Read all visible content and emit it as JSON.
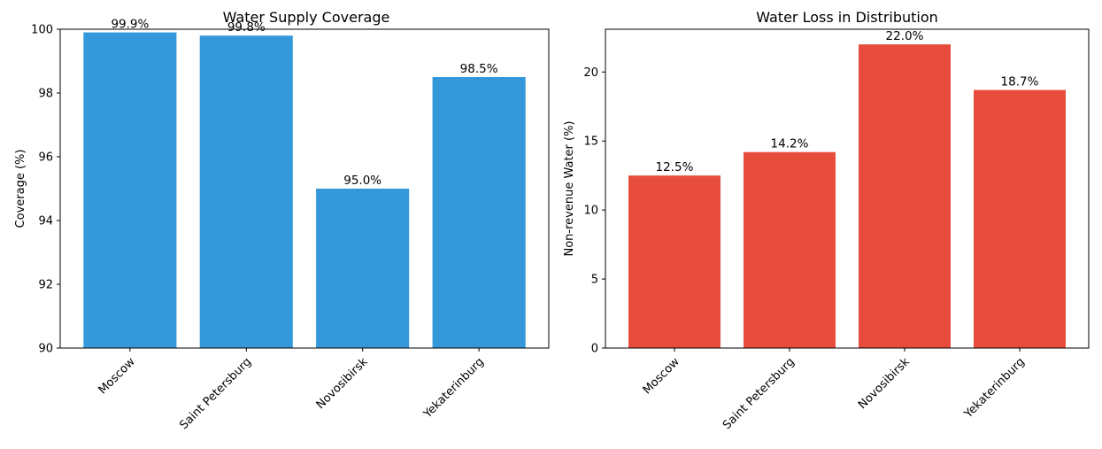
{
  "chart_data": [
    {
      "type": "bar",
      "title": "Water Supply Coverage",
      "xlabel": "",
      "ylabel": "Coverage (%)",
      "categories": [
        "Moscow",
        "Saint Petersburg",
        "Novosibirsk",
        "Yekaterinburg"
      ],
      "values": [
        99.9,
        99.8,
        95.0,
        98.5
      ],
      "data_labels": [
        "99.9%",
        "99.8%",
        "95.0%",
        "98.5%"
      ],
      "ylim": [
        90,
        100
      ],
      "yticks": [
        90,
        92,
        94,
        96,
        98,
        100
      ],
      "ytick_labels": [
        "90",
        "92",
        "94",
        "96",
        "98",
        "100"
      ],
      "color": "#3498db",
      "grid": false,
      "legend": "none"
    },
    {
      "type": "bar",
      "title": "Water Loss in Distribution",
      "xlabel": "",
      "ylabel": "Non-revenue Water (%)",
      "categories": [
        "Moscow",
        "Saint Petersburg",
        "Novosibirsk",
        "Yekaterinburg"
      ],
      "values": [
        12.5,
        14.2,
        22.0,
        18.7
      ],
      "data_labels": [
        "12.5%",
        "14.2%",
        "22.0%",
        "18.7%"
      ],
      "ylim": [
        0,
        23.1
      ],
      "yticks": [
        0,
        5,
        10,
        15,
        20
      ],
      "ytick_labels": [
        "0",
        "5",
        "10",
        "15",
        "20"
      ],
      "color": "#e74c3c",
      "grid": false,
      "legend": "none"
    }
  ]
}
